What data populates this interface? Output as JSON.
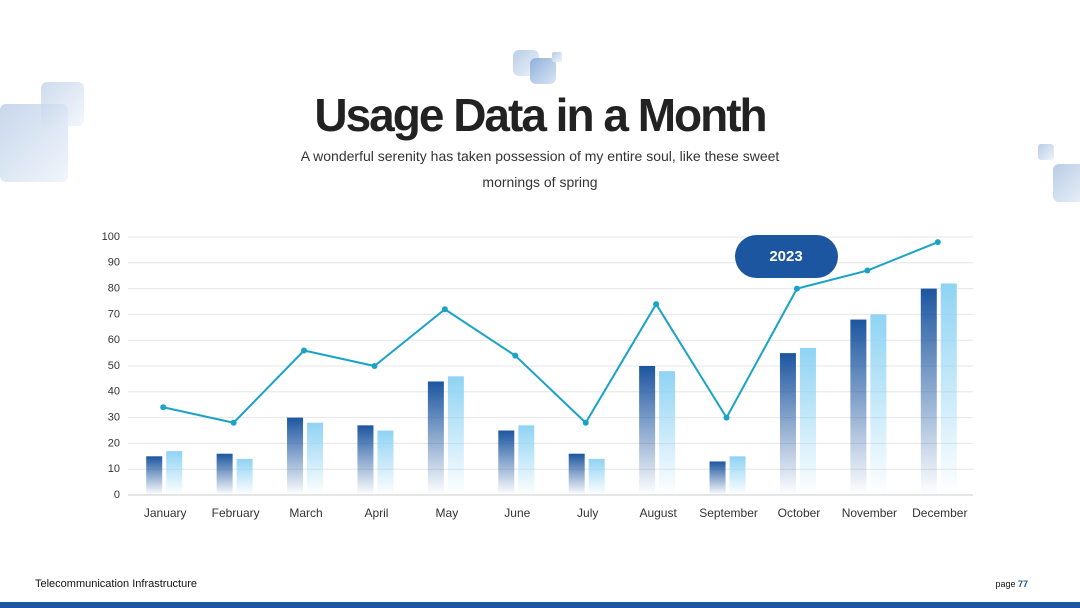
{
  "title": "Usage Data in a Month",
  "subtitle": "A wonderful serenity has taken possession of my entire soul, like these sweet mornings of spring",
  "footer": {
    "left": "Telecommunication Infrastructure",
    "page_label": "page",
    "page_number": "77"
  },
  "chart_data": {
    "type": "bar",
    "categories": [
      "January",
      "February",
      "March",
      "April",
      "May",
      "June",
      "July",
      "August",
      "September",
      "October",
      "November",
      "December"
    ],
    "series": [
      {
        "color": "#1c56a0",
        "values": [
          15,
          16,
          30,
          27,
          44,
          25,
          16,
          50,
          13,
          55,
          68,
          80
        ]
      },
      {
        "color": "#8fd3f4",
        "values": [
          17,
          14,
          28,
          25,
          46,
          27,
          14,
          48,
          15,
          57,
          70,
          82
        ]
      },
      {
        "type": "line",
        "color": "#1aa3c6",
        "values": [
          34,
          28,
          56,
          50,
          72,
          54,
          28,
          74,
          30,
          80,
          87,
          98
        ]
      }
    ],
    "annotation": "2023",
    "ylim": [
      0,
      100
    ],
    "yticks": [
      0,
      10,
      20,
      30,
      40,
      50,
      60,
      70,
      80,
      90,
      100
    ],
    "grid": true
  }
}
